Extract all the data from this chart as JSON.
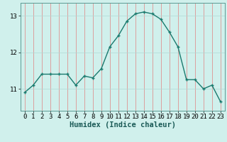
{
  "x": [
    0,
    1,
    2,
    3,
    4,
    5,
    6,
    7,
    8,
    9,
    10,
    11,
    12,
    13,
    14,
    15,
    16,
    17,
    18,
    19,
    20,
    21,
    22,
    23
  ],
  "y": [
    10.9,
    11.1,
    11.4,
    11.4,
    11.4,
    11.4,
    11.1,
    11.35,
    11.3,
    11.55,
    12.15,
    12.45,
    12.85,
    13.05,
    13.1,
    13.05,
    12.9,
    12.55,
    12.15,
    11.25,
    11.25,
    11.0,
    11.1,
    10.65
  ],
  "line_color": "#1a7a6e",
  "marker": "+",
  "marker_size": 3,
  "bg_color": "#d0f0ec",
  "grid_color_v": "#e08080",
  "grid_color_h": "#b0d8d4",
  "xlabel": "Humidex (Indice chaleur)",
  "xlabel_fontsize": 7.5,
  "yticks": [
    11,
    12,
    13
  ],
  "xticks": [
    0,
    1,
    2,
    3,
    4,
    5,
    6,
    7,
    8,
    9,
    10,
    11,
    12,
    13,
    14,
    15,
    16,
    17,
    18,
    19,
    20,
    21,
    22,
    23
  ],
  "ylim": [
    10.4,
    13.35
  ],
  "xlim": [
    -0.5,
    23.5
  ],
  "tick_fontsize": 6.5,
  "linewidth": 1.0,
  "spine_color": "#5a9a94"
}
